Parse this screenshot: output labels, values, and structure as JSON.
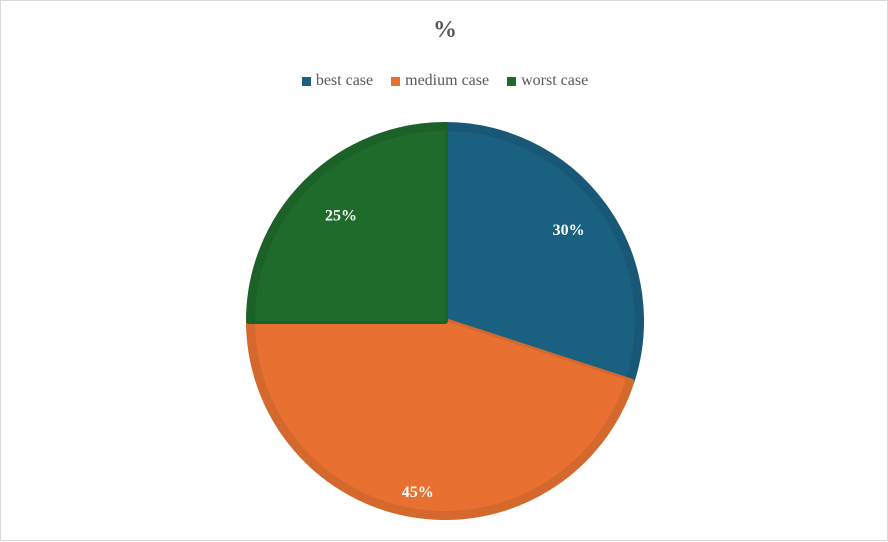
{
  "chart_data": {
    "type": "pie",
    "title": "%",
    "categories": [
      "best case",
      "medium case",
      "worst case"
    ],
    "values": [
      30,
      45,
      25
    ],
    "labels": [
      "30%",
      "45%",
      "25%"
    ],
    "colors": [
      "#1a6080",
      "#e87131",
      "#1e6b2c"
    ],
    "legend_position": "top"
  }
}
